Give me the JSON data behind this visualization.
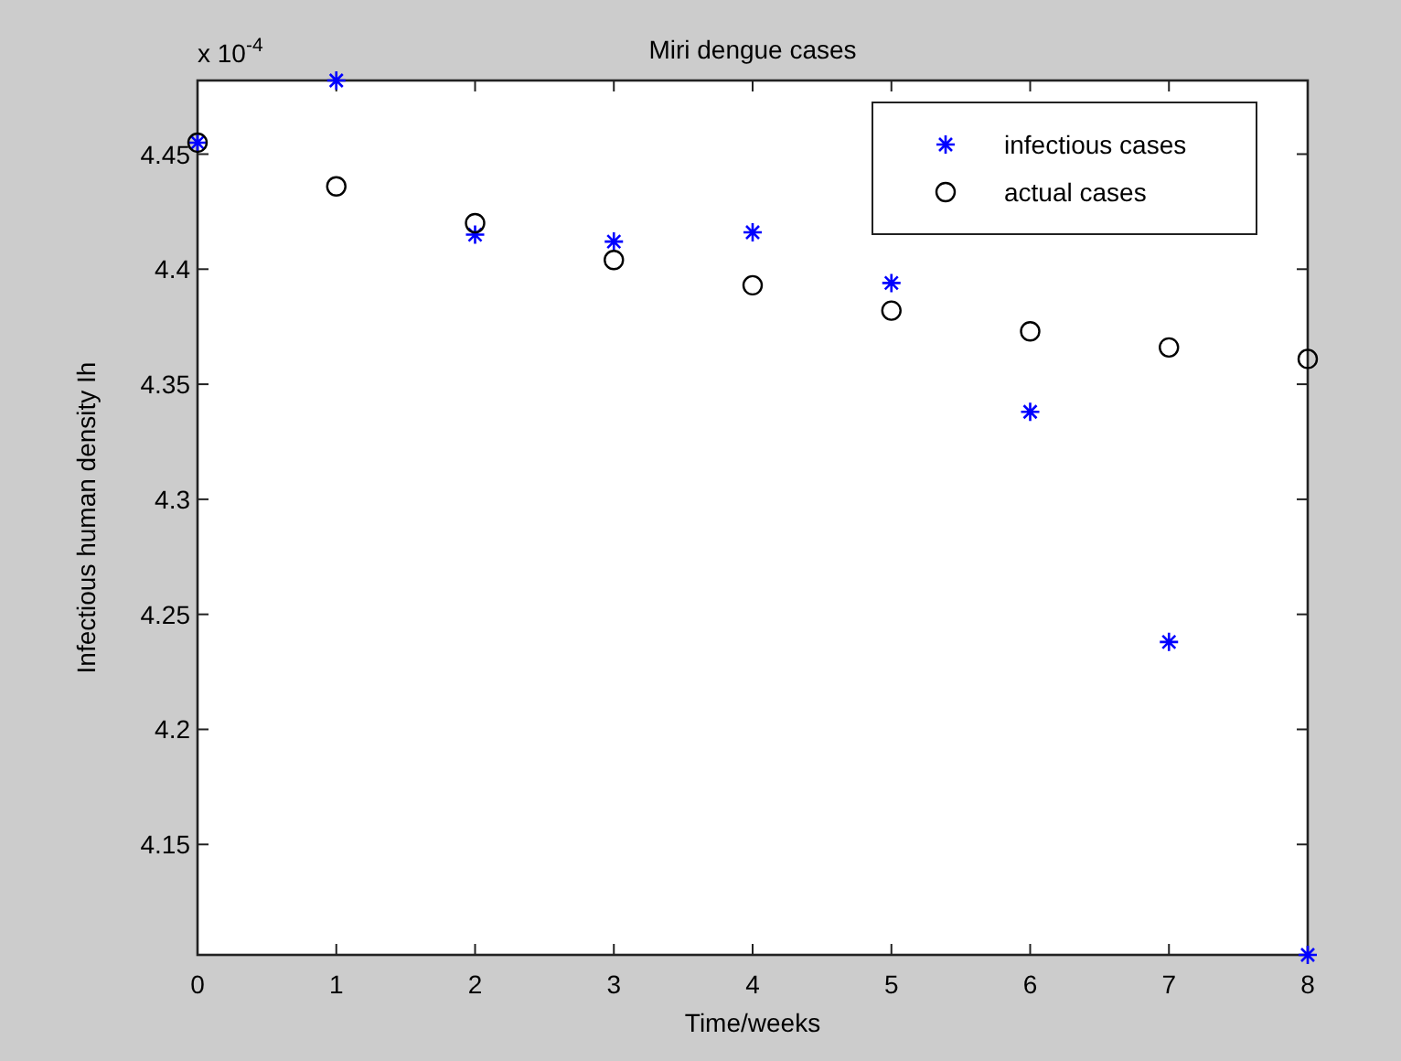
{
  "chart_data": {
    "type": "scatter",
    "title": "Miri dengue cases",
    "xlabel": "Time/weeks",
    "ylabel": "Infectious human density Ih",
    "annotations": [
      "x 10$^{-4}$"
    ],
    "x": [
      0,
      1,
      2,
      3,
      4,
      5,
      6,
      7,
      8
    ],
    "series": [
      {
        "name": "infectious cases",
        "color": "#0000ff",
        "marker": "cross",
        "values": [
          4.455,
          4.482,
          4.415,
          4.412,
          4.416,
          4.394,
          4.338,
          4.238,
          4.102
        ]
      },
      {
        "name": "actual cases",
        "color": "#000000",
        "marker": "circle",
        "values": [
          4.455,
          4.436,
          4.42,
          4.404,
          4.393,
          4.382,
          4.373,
          4.366,
          4.361
        ]
      }
    ],
    "xlim": [
      0,
      8
    ],
    "xticks": [
      0,
      1,
      2,
      3,
      4,
      5,
      6,
      7,
      8
    ],
    "ylim": [
      4.102,
      4.482
    ],
    "yticks": [
      4.15,
      4.2,
      4.25,
      4.3,
      4.35,
      4.4,
      4.45
    ],
    "grid": false,
    "legend": "top right"
  }
}
